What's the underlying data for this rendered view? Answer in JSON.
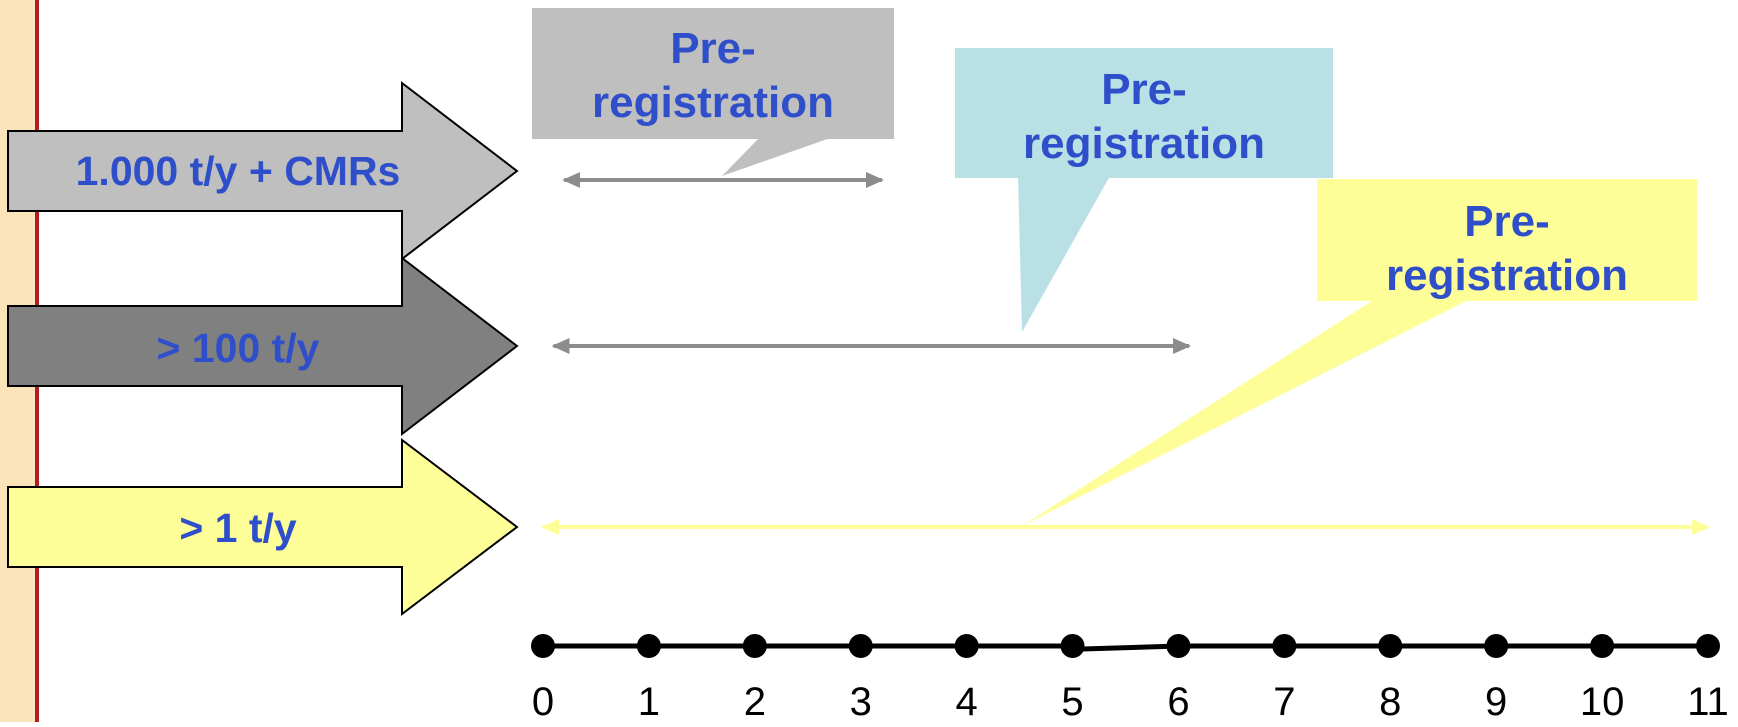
{
  "colors": {
    "band": "#fbe4b9",
    "band_line": "#b11d24",
    "text_blue": "#2e4fc9",
    "gray_light": "#bfbfbf",
    "gray_dark": "#808080",
    "teal": "#b9e1e5",
    "yellow": "#fefe99",
    "range_line": "#8c8c8c",
    "yellow_line": "#fefe99",
    "axis": "#000000"
  },
  "arrows": [
    {
      "label": "1.000 t/y + CMRs",
      "fill": "gray_light"
    },
    {
      "label": "> 100 t/y",
      "fill": "gray_dark"
    },
    {
      "label": "> 1 t/y",
      "fill": "yellow"
    }
  ],
  "callouts": [
    {
      "text_line1": "Pre-",
      "text_line2": "registration",
      "fill": "gray_light"
    },
    {
      "text_line1": "Pre-",
      "text_line2": "registration",
      "fill": "teal"
    },
    {
      "text_line1": "Pre-",
      "text_line2": "registration",
      "fill": "yellow"
    }
  ],
  "chart_data": {
    "type": "timeline",
    "axis": {
      "ticks": [
        "0",
        "1",
        "2",
        "3",
        "4",
        "5",
        "6",
        "7",
        "8",
        "9",
        "10",
        "11"
      ]
    },
    "ranges": [
      {
        "row": "1.000 t/y + CMRs",
        "start": 0.2,
        "end": 3.2
      },
      {
        "row": "> 100 t/y",
        "start": 0.1,
        "end": 6.1
      },
      {
        "row": "> 1 t/y",
        "start": 0.0,
        "end": 11.0
      }
    ]
  }
}
